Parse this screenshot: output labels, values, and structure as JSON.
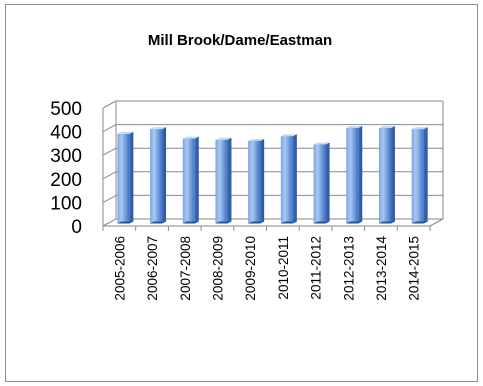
{
  "chart_data": {
    "type": "bar",
    "title": "Mill Brook/Dame/Eastman",
    "xlabel": "",
    "ylabel": "",
    "categories": [
      "2005-2006",
      "2006-2007",
      "2007-2008",
      "2008-2009",
      "2009-2010",
      "2010-2011",
      "2011-2012",
      "2012-2013",
      "2013-2014",
      "2014-2015"
    ],
    "values": [
      380,
      400,
      360,
      355,
      350,
      370,
      335,
      405,
      405,
      400
    ],
    "ylim": [
      0,
      500
    ],
    "yticks": [
      0,
      100,
      200,
      300,
      400,
      500
    ],
    "grid": true,
    "legend": "none",
    "style": "3d-column",
    "colors": {
      "bar_light": "#a9c8f2",
      "bar_mid": "#5f93dc",
      "bar_dark": "#2f5fae",
      "grid": "#8a8a8a",
      "frame": "#8c8c8c"
    }
  }
}
